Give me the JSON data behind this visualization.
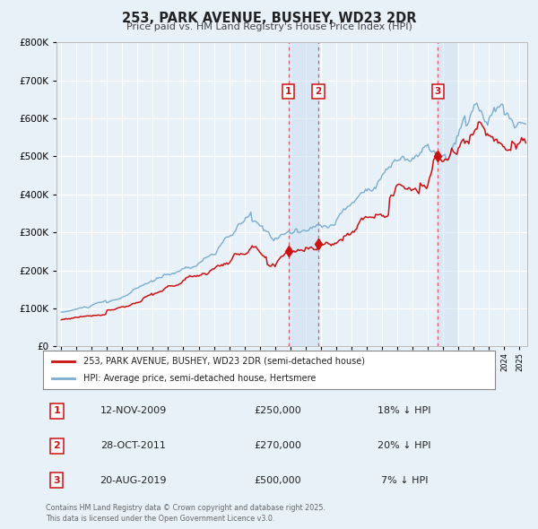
{
  "title": "253, PARK AVENUE, BUSHEY, WD23 2DR",
  "subtitle": "Price paid vs. HM Land Registry's House Price Index (HPI)",
  "background_color": "#e8f0f8",
  "plot_bg_color": "#e8f0f8",
  "grid_color": "#ffffff",
  "red_line_color": "#cc1111",
  "blue_line_color": "#7aadcf",
  "shade_color": "#cce0f0",
  "transactions": [
    {
      "num": 1,
      "date_str": "12-NOV-2009",
      "date_x": 2009.87,
      "price": 250000,
      "pct": "18%",
      "dir": "↓"
    },
    {
      "num": 2,
      "date_str": "28-OCT-2011",
      "date_x": 2011.83,
      "price": 270000,
      "pct": "20%",
      "dir": "↓"
    },
    {
      "num": 3,
      "date_str": "20-AUG-2019",
      "date_x": 2019.64,
      "price": 500000,
      "pct": "7%",
      "dir": "↓"
    }
  ],
  "legend_red_label": "253, PARK AVENUE, BUSHEY, WD23 2DR (semi-detached house)",
  "legend_blue_label": "HPI: Average price, semi-detached house, Hertsmere",
  "footer": "Contains HM Land Registry data © Crown copyright and database right 2025.\nThis data is licensed under the Open Government Licence v3.0.",
  "ylim": [
    0,
    800000
  ],
  "xlim_start": 1994.7,
  "xlim_end": 2025.5
}
